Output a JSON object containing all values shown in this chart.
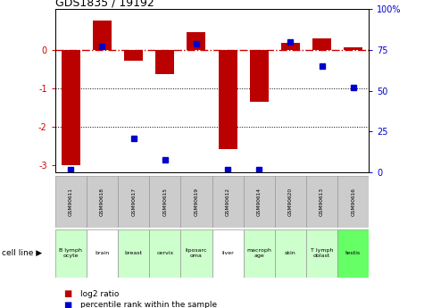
{
  "title": "GDS1835 / 19192",
  "samples": [
    "GSM90611",
    "GSM90618",
    "GSM90617",
    "GSM90615",
    "GSM90619",
    "GSM90612",
    "GSM90614",
    "GSM90620",
    "GSM90613",
    "GSM90616"
  ],
  "cell_lines": [
    "B lymph\nocyte",
    "brain",
    "breast",
    "cervix",
    "liposarc\noma",
    "liver",
    "macroph\nage",
    "skin",
    "T lymph\noblast",
    "testis"
  ],
  "cell_line_colors": [
    "#ccffcc",
    "#ffffff",
    "#ccffcc",
    "#ccffcc",
    "#ccffcc",
    "#ffffff",
    "#ccffcc",
    "#ccffcc",
    "#ccffcc",
    "#66ff66"
  ],
  "log2_ratio": [
    -3.0,
    0.75,
    -0.3,
    -0.65,
    0.45,
    -2.6,
    -1.35,
    0.18,
    0.3,
    0.05
  ],
  "percentile_rank": [
    2,
    77,
    21,
    8,
    79,
    2,
    2,
    80,
    65,
    52
  ],
  "ylim_left": [
    -3.2,
    1.05
  ],
  "ylim_right": [
    0,
    100
  ],
  "bar_color": "#bb0000",
  "dot_color": "#0000cc",
  "dashed_line_color": "#cc0000",
  "ylabel_left_color": "#cc0000",
  "ylabel_right_color": "#0000cc",
  "background_color": "#ffffff"
}
